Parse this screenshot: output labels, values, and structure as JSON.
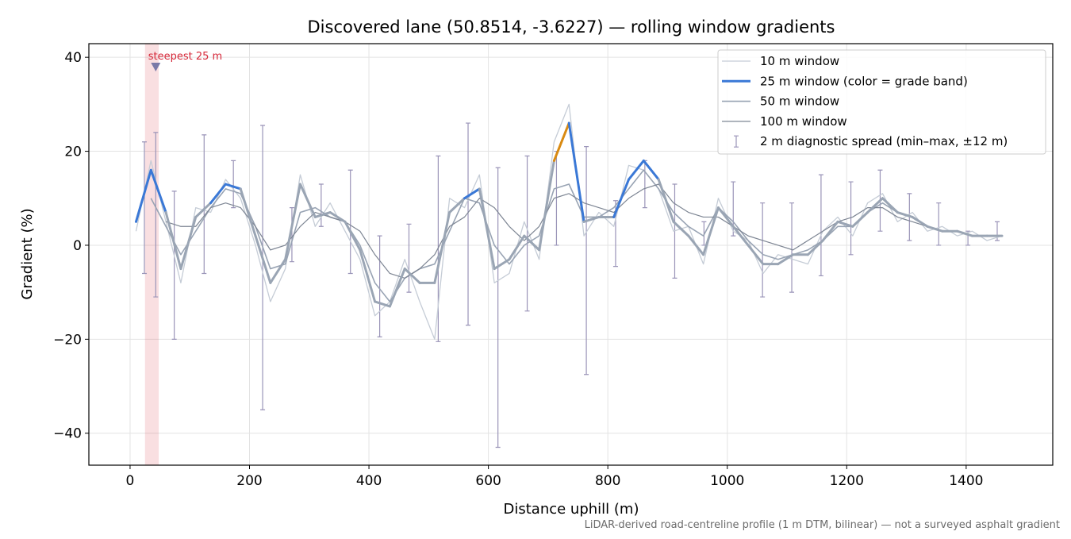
{
  "chart_data": {
    "type": "line",
    "title": "Discovered lane (50.8514, -3.6227) — rolling window gradients",
    "x_label": "Distance uphill (m)",
    "y_label": "Gradient (%)",
    "footnote": "LiDAR-derived road-centreline profile (1 m DTM, bilinear) — not a surveyed asphalt gradient",
    "xlim": [
      -69,
      1545
    ],
    "ylim": [
      -46.8,
      42.9
    ],
    "xticks": [
      0,
      200,
      400,
      600,
      800,
      1000,
      1200,
      1400
    ],
    "yticks": [
      {
        "value": -40,
        "label": "−40"
      },
      {
        "value": -20,
        "label": "−20"
      },
      0,
      20,
      40
    ],
    "grid": true,
    "legend": "upper right",
    "x": [
      10,
      35,
      60,
      85,
      110,
      135,
      160,
      185,
      210,
      235,
      260,
      285,
      310,
      335,
      360,
      385,
      410,
      435,
      460,
      485,
      510,
      535,
      560,
      585,
      610,
      635,
      660,
      685,
      710,
      735,
      760,
      785,
      810,
      835,
      860,
      885,
      910,
      935,
      960,
      985,
      1010,
      1035,
      1060,
      1085,
      1110,
      1135,
      1160,
      1185,
      1210,
      1235,
      1260,
      1285,
      1310,
      1335,
      1360,
      1385,
      1410,
      1435,
      1460
    ],
    "series": [
      {
        "name": "10 m window",
        "color": "#c5ccd6",
        "width": 1.3,
        "values": [
          3,
          18,
          5,
          -8,
          8,
          7,
          14,
          10,
          0,
          -12,
          -5,
          15,
          4,
          9,
          3,
          -3,
          -15,
          -12,
          -3,
          -12,
          -20,
          10,
          8,
          15,
          -8,
          -6,
          5,
          -3,
          22,
          30,
          2,
          7,
          4,
          17,
          16,
          12,
          3,
          4,
          -4,
          10,
          3,
          1,
          -6,
          -2,
          -3,
          -4,
          3,
          6,
          2,
          9,
          11,
          5,
          7,
          3,
          4,
          2,
          3,
          1,
          2
        ]
      },
      {
        "name": "25 m window (color = grade band)",
        "color": "#9aa5b4",
        "width": 3,
        "bands": [
          {
            "min": 10,
            "color": "#3a78d6"
          },
          {
            "min": 20,
            "color": "#d98a12"
          },
          {
            "min": 25,
            "color": "#b5192b"
          }
        ],
        "values": [
          5,
          16,
          7,
          -5,
          6,
          9,
          13,
          12,
          2,
          -8,
          -3,
          13,
          6,
          7,
          5,
          -1,
          -12,
          -13,
          -5,
          -8,
          -8,
          7,
          10,
          12,
          -5,
          -3,
          2,
          -1,
          18,
          26,
          5,
          6,
          6,
          14,
          18,
          14,
          5,
          2,
          -2,
          8,
          4,
          0,
          -4,
          -4,
          -2,
          -2,
          1,
          5,
          4,
          7,
          10,
          7,
          6,
          4,
          3,
          3,
          2,
          2,
          2
        ]
      },
      {
        "name": "50 m window",
        "color": "#98a3b3",
        "width": 1.6,
        "values": [
          null,
          10,
          4,
          -2,
          3,
          8,
          12,
          11,
          4,
          -5,
          -4,
          7,
          8,
          6,
          5,
          0,
          -8,
          -12,
          -7,
          -5,
          -4,
          3,
          10,
          9,
          0,
          -4,
          0,
          2,
          12,
          13,
          6,
          6,
          8,
          12,
          16,
          12,
          7,
          4,
          2,
          8,
          5,
          1,
          -2,
          -3,
          -2,
          -1,
          1,
          4,
          4,
          7,
          9,
          7,
          6,
          4,
          3,
          3,
          2,
          2,
          null
        ]
      },
      {
        "name": "100 m window",
        "color": "#7d8593",
        "width": 1.2,
        "values": [
          null,
          null,
          5,
          4,
          4,
          8,
          9,
          8,
          4,
          -1,
          0,
          4,
          7,
          6,
          5,
          3,
          -2,
          -6,
          -7,
          -5,
          -2,
          4,
          6,
          10,
          8,
          4,
          1,
          4,
          10,
          11,
          9,
          8,
          7,
          10,
          12,
          13,
          9,
          7,
          6,
          6,
          4,
          2,
          1,
          0,
          -1,
          1,
          3,
          5,
          6,
          8,
          8,
          6,
          5,
          4,
          3,
          3,
          2,
          null,
          null
        ]
      }
    ],
    "spread": {
      "name": "2 m diagnostic spread (min–max, ±12 m)",
      "color": "#9a94b8",
      "x": [
        24,
        43,
        74,
        124,
        173,
        222,
        271,
        320,
        369,
        418,
        467,
        516,
        566,
        616,
        665,
        714,
        764,
        813,
        862,
        912,
        961,
        1010,
        1059,
        1108,
        1157,
        1207,
        1256,
        1305,
        1354,
        1403,
        1452
      ],
      "min": [
        -6,
        -11,
        -20,
        -6,
        8,
        -35,
        -3.5,
        4,
        -6,
        -19.5,
        -10,
        -20.5,
        -17,
        -43,
        -14,
        0,
        -27.5,
        -4.5,
        8,
        -7,
        0,
        2,
        -11,
        -10,
        -6.5,
        -2,
        3,
        1,
        0,
        0,
        1
      ],
      "max": [
        22,
        24,
        11.5,
        23.5,
        18,
        25.5,
        8,
        13,
        16,
        2,
        4.5,
        19,
        26,
        16.5,
        19,
        20,
        21,
        9.5,
        18,
        13,
        5,
        13.5,
        9,
        9,
        15,
        13.5,
        16,
        11,
        9,
        3,
        5
      ]
    },
    "highlight": {
      "label": "steepest 25 m",
      "color": "#d62839",
      "xrange": [
        25,
        48
      ],
      "marker": [
        43,
        38
      ]
    }
  }
}
